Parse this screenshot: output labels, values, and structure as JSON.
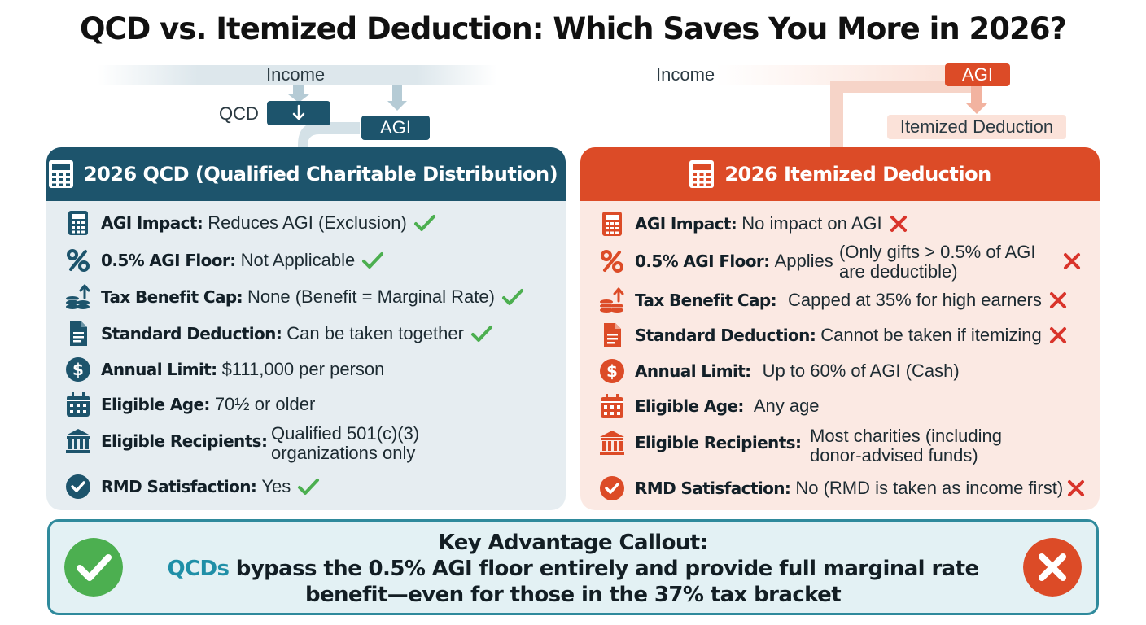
{
  "title": "QCD vs. Itemized Deduction: Which Saves You More in 2026?",
  "flow_left": {
    "income": "Income",
    "qcd": "QCD",
    "agi": "AGI"
  },
  "flow_right": {
    "income": "Income",
    "agi": "AGI",
    "itemized": "Itemized Deduction"
  },
  "qcd_panel": {
    "heading": "2026 QCD (Qualified Charitable Distribution)",
    "rows": [
      {
        "icon": "calculator-icon",
        "label": "AGI Impact:",
        "value": "Reduces AGI (Exclusion)",
        "status": "check"
      },
      {
        "icon": "percent-icon",
        "label": "0.5% AGI Floor:",
        "value": "Not Applicable",
        "status": "check"
      },
      {
        "icon": "coins-arrow-icon",
        "label": "Tax Benefit Cap:",
        "value": "None (Benefit = Marginal Rate)",
        "status": "check"
      },
      {
        "icon": "document-icon",
        "label": "Standard Deduction:",
        "value": "Can be taken together",
        "status": "check"
      },
      {
        "icon": "dollar-icon",
        "label": "Annual Limit:",
        "value": "$111,000 per person",
        "status": ""
      },
      {
        "icon": "calendar-icon",
        "label": "Eligible Age:",
        "value": "70½ or older",
        "status": ""
      },
      {
        "icon": "bank-icon",
        "label": "Eligible Recipients:",
        "value_line1": "Qualified 501(c)(3)",
        "value_line2": "organizations only",
        "status": ""
      },
      {
        "icon": "check-circle-icon",
        "label": "RMD Satisfaction:",
        "value": "Yes",
        "status": "check"
      }
    ]
  },
  "itemized_panel": {
    "heading": "2026 Itemized Deduction",
    "rows": [
      {
        "icon": "calculator-icon",
        "label": "AGI Impact:",
        "value": "No impact on AGI",
        "status": "cross"
      },
      {
        "icon": "percent-icon",
        "label": "0.5% AGI Floor:",
        "value": "Applies",
        "value_line1": "(Only gifts > 0.5% of AGI",
        "value_line2": "are deductible)",
        "status": "cross"
      },
      {
        "icon": "coins-arrow-icon",
        "label": "Tax Benefit Cap:",
        "value": "Capped at 35% for high earners",
        "status": "cross"
      },
      {
        "icon": "document-icon",
        "label": "Standard Deduction:",
        "value": "Cannot be taken if itemizing",
        "status": "cross"
      },
      {
        "icon": "dollar-icon",
        "label": "Annual Limit:",
        "value": "Up to 60% of AGI (Cash)",
        "status": ""
      },
      {
        "icon": "calendar-icon",
        "label": "Eligible Age:",
        "value": "Any age",
        "status": ""
      },
      {
        "icon": "bank-icon",
        "label": "Eligible Recipients:",
        "value_line1": "Most charities (including",
        "value_line2": "donor-advised funds)",
        "status": ""
      },
      {
        "icon": "check-circle-icon",
        "label": "RMD Satisfaction:",
        "value": "No (RMD is taken as income first)",
        "status": "cross"
      }
    ]
  },
  "callout": {
    "heading": "Key Advantage Callout:",
    "emphasis": "QCDs",
    "line1_rest": " bypass the 0.5% AGI floor entirely and provide full marginal rate",
    "line2": "benefit—even for those in the 37% tax bracket"
  },
  "colors": {
    "teal": "#1d546c",
    "orange": "#dc4b27",
    "check": "#4caf50",
    "cross": "#d9342b",
    "accent": "#1f8fa7"
  }
}
